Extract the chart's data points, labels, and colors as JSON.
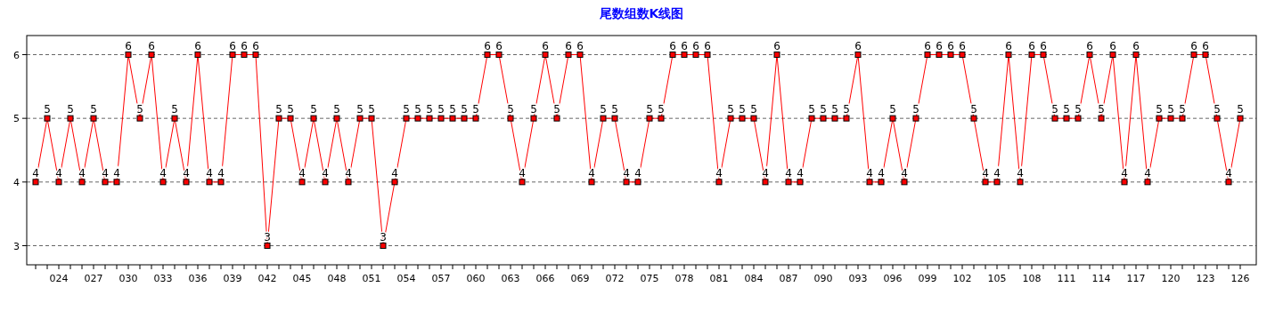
{
  "chart_data": {
    "type": "line",
    "title": "尾数组数K线图",
    "categories": [
      null,
      null,
      "024",
      null,
      null,
      "027",
      null,
      null,
      "030",
      null,
      null,
      "033",
      null,
      null,
      "036",
      null,
      null,
      "039",
      null,
      null,
      "042",
      null,
      null,
      "045",
      null,
      null,
      "048",
      null,
      null,
      "051",
      null,
      null,
      "054",
      null,
      null,
      "057",
      null,
      null,
      "060",
      null,
      null,
      "063",
      null,
      null,
      "066",
      null,
      null,
      "069",
      null,
      null,
      "072",
      null,
      null,
      "075",
      null,
      null,
      "078",
      null,
      null,
      "081",
      null,
      null,
      "084",
      null,
      null,
      "087",
      null,
      null,
      "090",
      null,
      null,
      "093",
      null,
      null,
      "096",
      null,
      null,
      "099",
      null,
      null,
      "102",
      null,
      null,
      "105",
      null,
      null,
      "108",
      null,
      null,
      "111",
      null,
      null,
      "114",
      null,
      null,
      "117",
      null,
      null,
      "120",
      null,
      null,
      "123",
      null,
      null,
      "126"
    ],
    "series": [
      {
        "color": "#ff0000",
        "values": [
          4,
          5,
          4,
          5,
          4,
          5,
          4,
          4,
          6,
          5,
          6,
          4,
          5,
          4,
          6,
          4,
          4,
          6,
          6,
          6,
          3,
          5,
          5,
          4,
          5,
          4,
          5,
          4,
          5,
          5,
          3,
          4,
          5,
          5,
          5,
          5,
          5,
          5,
          5,
          6,
          6,
          5,
          4,
          5,
          6,
          5,
          6,
          6,
          4,
          5,
          5,
          4,
          4,
          5,
          5,
          6,
          6,
          6,
          6,
          4,
          5,
          5,
          5,
          4,
          6,
          4,
          4,
          5,
          5,
          5,
          5,
          6,
          4,
          4,
          5,
          4,
          5,
          6,
          6,
          6,
          6,
          5,
          4,
          4,
          6,
          4,
          6,
          6,
          5,
          5,
          5,
          6,
          5,
          6,
          4,
          6,
          4,
          5,
          5,
          5,
          6,
          6,
          5,
          4,
          5
        ]
      }
    ],
    "ylim": [
      2.7,
      6.3
    ],
    "yticks": [
      3,
      4,
      5,
      6
    ],
    "grid": "y",
    "marker": "square",
    "line_style": "solid",
    "data_labels": true
  }
}
